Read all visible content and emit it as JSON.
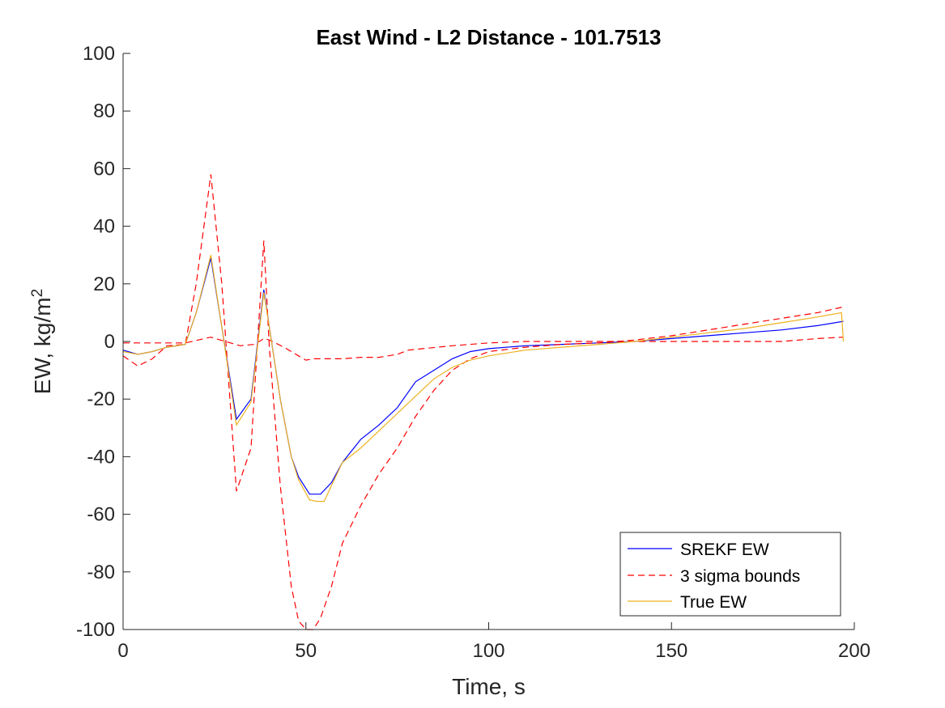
{
  "chart_data": {
    "type": "line",
    "title": "East Wind - L2 Distance - 101.7513",
    "xlabel": "Time, s",
    "ylabel": "EW, kg/m",
    "ylabel_superscript": "2",
    "xlim": [
      0,
      200
    ],
    "ylim": [
      -100,
      100
    ],
    "xticks": [
      0,
      50,
      100,
      150,
      200
    ],
    "yticks": [
      -100,
      -80,
      -60,
      -40,
      -20,
      0,
      20,
      40,
      60,
      80,
      100
    ],
    "grid": false,
    "legend_position": "bottom-right",
    "series": [
      {
        "name": "SREKF EW",
        "color": "#0000ff",
        "style": "solid",
        "x": [
          0,
          4,
          8,
          12,
          17,
          20,
          24,
          27,
          31,
          35,
          38.5,
          40,
          43,
          46,
          48,
          51,
          54,
          57,
          60,
          65,
          70,
          75,
          80,
          85,
          90,
          95,
          100,
          110,
          120,
          130,
          140,
          150,
          160,
          170,
          180,
          190,
          197
        ],
        "y": [
          -3,
          -4.5,
          -3.5,
          -2,
          -1,
          10,
          29,
          5,
          -27,
          -20,
          18,
          5,
          -20,
          -40,
          -47,
          -53,
          -53,
          -49,
          -42,
          -34,
          -29,
          -23,
          -14,
          -10,
          -6,
          -3.5,
          -2.5,
          -1.5,
          -1,
          -0.5,
          0,
          1,
          2,
          3,
          4,
          5.5,
          7
        ]
      },
      {
        "name": "3 sigma bounds",
        "color": "#ff0000",
        "style": "dashed",
        "x": [
          0,
          4,
          8,
          12,
          17,
          20,
          24,
          27,
          31,
          35,
          38.5,
          40,
          43,
          46,
          48,
          50,
          52,
          54,
          57,
          60,
          65,
          70,
          75,
          80,
          85,
          90,
          95,
          100,
          110,
          120,
          130,
          140,
          150,
          160,
          170,
          180,
          190,
          197
        ],
        "y": [
          -5,
          -8.5,
          -6,
          -1.5,
          -1,
          20,
          58,
          20,
          -52,
          -37,
          35,
          -2,
          -50,
          -85,
          -97,
          -100,
          -100,
          -96,
          -85,
          -70,
          -57,
          -46,
          -37,
          -26,
          -17,
          -10,
          -6,
          -3.5,
          -2,
          -1,
          -0.5,
          0.5,
          2,
          4,
          6,
          8,
          10,
          12
        ]
      },
      {
        "name": "",
        "color": "#ff0000",
        "style": "dashed",
        "x": [
          0,
          10,
          17,
          24,
          28,
          32,
          36,
          38.5,
          40,
          44,
          48,
          50,
          52,
          55,
          60,
          65,
          70,
          75,
          78,
          82,
          90,
          100,
          110,
          120,
          130,
          140,
          150,
          160,
          170,
          180,
          190,
          197
        ],
        "y": [
          -0.5,
          -0.5,
          -0.5,
          1.5,
          0,
          -1.5,
          -1,
          1,
          0.5,
          -2,
          -5,
          -6.5,
          -6,
          -6,
          -6,
          -5.5,
          -5.5,
          -4.5,
          -3,
          -2.5,
          -1.5,
          -0.5,
          0,
          0,
          0,
          0,
          0,
          0,
          0,
          0,
          1,
          1.5
        ]
      },
      {
        "name": "True EW",
        "color": "#edb120",
        "style": "solid",
        "x": [
          0,
          4,
          8,
          12,
          17,
          20,
          24,
          27,
          31,
          35,
          38.5,
          40,
          43,
          46,
          48,
          51,
          53,
          55,
          57,
          60,
          65,
          70,
          75,
          80,
          85,
          90,
          95,
          100,
          110,
          120,
          130,
          140,
          150,
          160,
          170,
          180,
          190,
          196.5,
          197
        ],
        "y": [
          -3.5,
          -4.5,
          -3.5,
          -2,
          -1,
          10,
          30,
          5,
          -29,
          -21,
          17,
          5,
          -20,
          -40,
          -48,
          -55,
          -55.5,
          -55.5,
          -50,
          -42,
          -37,
          -31,
          -25,
          -19,
          -13,
          -9,
          -6.5,
          -5,
          -3,
          -2,
          -1,
          0,
          1.5,
          3,
          4.5,
          6.5,
          8.5,
          10,
          0
        ]
      }
    ]
  }
}
